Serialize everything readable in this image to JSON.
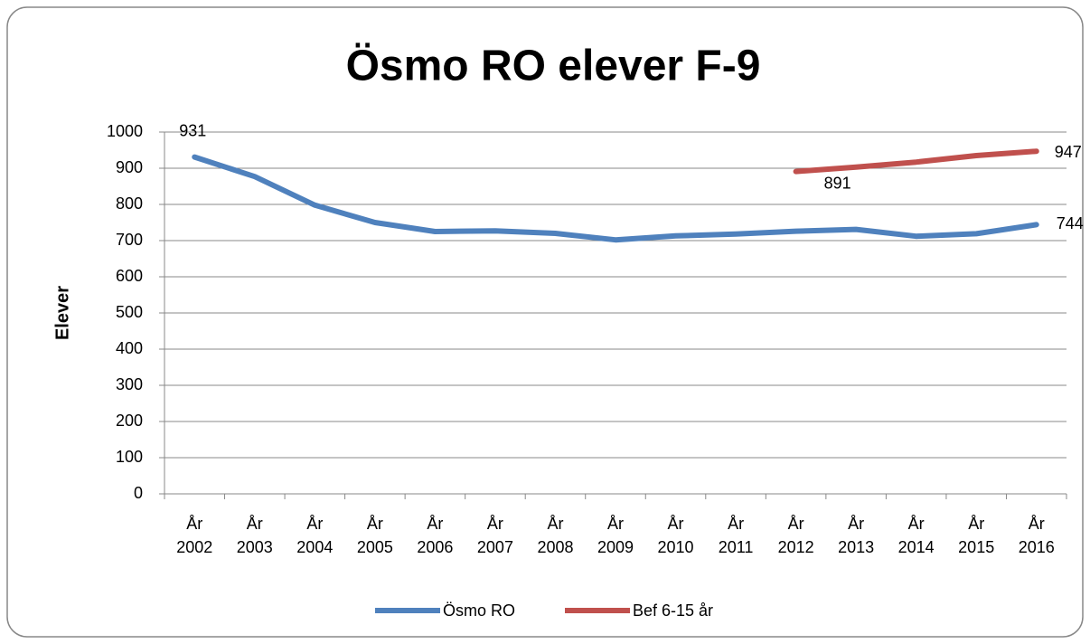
{
  "chart_data": {
    "type": "line",
    "title": "Ösmo RO elever F-9",
    "y_label": "Elever",
    "categories": [
      "År 2002",
      "År 2003",
      "År 2004",
      "År 2005",
      "År 2006",
      "År 2007",
      "År 2008",
      "År 2009",
      "År 2010",
      "År 2011",
      "År 2012",
      "År 2013",
      "År 2014",
      "År 2015",
      "År 2016"
    ],
    "series": [
      {
        "name": "Ösmo RO",
        "color": "#4f81bd",
        "values": [
          931,
          877,
          798,
          750,
          725,
          727,
          720,
          702,
          713,
          718,
          726,
          731,
          712,
          719,
          744
        ],
        "label_indices": [
          0,
          14
        ]
      },
      {
        "name": "Bef 6-15 år",
        "color": "#c0504d",
        "values": [
          null,
          null,
          null,
          null,
          null,
          null,
          null,
          null,
          null,
          null,
          891,
          903,
          917,
          935,
          947
        ],
        "label_indices": [
          10,
          14
        ]
      }
    ],
    "ylim": [
      0,
      1000
    ],
    "yticks": [
      0,
      100,
      200,
      300,
      400,
      500,
      600,
      700,
      800,
      900,
      1000
    ],
    "grid": true,
    "legend": "bottom"
  }
}
